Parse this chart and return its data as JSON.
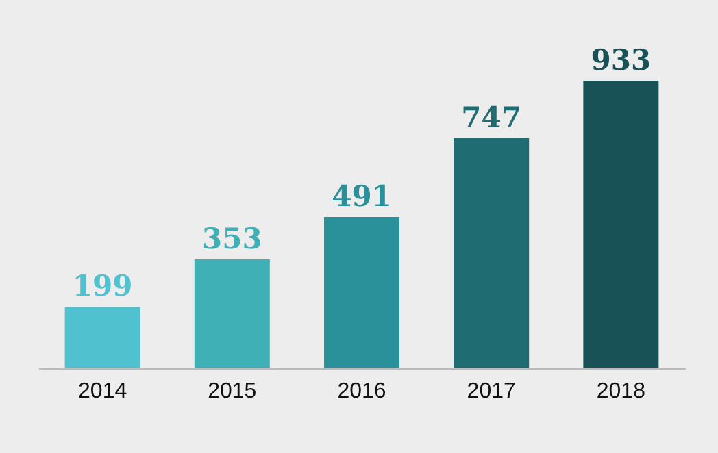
{
  "chart_data": {
    "type": "bar",
    "categories": [
      "2014",
      "2015",
      "2016",
      "2017",
      "2018"
    ],
    "values": [
      199,
      353,
      491,
      747,
      933
    ],
    "colors": [
      "#4fc1cf",
      "#3fb0b5",
      "#2a9099",
      "#1f6d72",
      "#185156"
    ],
    "data_labels": true
  }
}
